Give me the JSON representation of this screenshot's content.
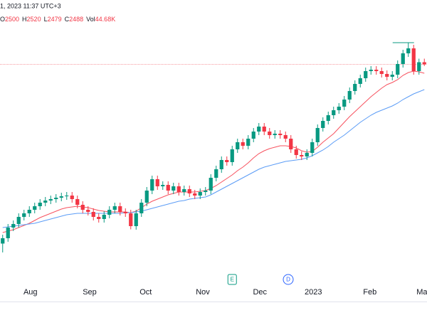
{
  "chart_data": {
    "type": "candlestick",
    "header": {
      "datetime": "1, 2023 11:37 UTC+3",
      "open_label": "O",
      "high_label": "H",
      "low_label": "L",
      "close_label": "C",
      "volume_label": "Vol",
      "open": 2500,
      "high": 2520,
      "low": 2479,
      "close": 2488,
      "volume": {
        "value": 44680,
        "label": "44.68K"
      }
    },
    "up_color": "#089981",
    "down_color": "#f23645",
    "open": [
      1480,
      1510,
      1570,
      1590,
      1630,
      1650,
      1670,
      1690,
      1710,
      1722,
      1730,
      1738,
      1746,
      1750,
      1730,
      1698,
      1670,
      1658,
      1630,
      1618,
      1642,
      1670,
      1690,
      1658,
      1650,
      1578,
      1650,
      1710,
      1778,
      1842,
      1802,
      1810,
      1778,
      1802,
      1770,
      1786,
      1762,
      1750,
      1770,
      1778,
      1850,
      1898,
      1950,
      1938,
      2010,
      2050,
      2030,
      2070,
      2110,
      2138,
      2110,
      2090,
      2098,
      2090,
      2070,
      2010,
      1978,
      1970,
      1990,
      2050,
      2130,
      2170,
      2202,
      2230,
      2250,
      2290,
      2338,
      2378,
      2410,
      2450,
      2458,
      2450,
      2434,
      2418,
      2430,
      2490,
      2550,
      2578,
      2450,
      2500
    ],
    "high": [
      1530,
      1590,
      1610,
      1650,
      1670,
      1690,
      1710,
      1730,
      1742,
      1750,
      1758,
      1766,
      1770,
      1770,
      1750,
      1718,
      1690,
      1678,
      1650,
      1662,
      1690,
      1710,
      1710,
      1678,
      1670,
      1670,
      1730,
      1798,
      1862,
      1862,
      1830,
      1830,
      1822,
      1822,
      1806,
      1806,
      1782,
      1790,
      1798,
      1870,
      1918,
      1970,
      1970,
      2030,
      2070,
      2070,
      2090,
      2130,
      2158,
      2158,
      2130,
      2118,
      2118,
      2110,
      2090,
      2030,
      1998,
      2010,
      2070,
      2150,
      2190,
      2222,
      2250,
      2270,
      2310,
      2358,
      2398,
      2430,
      2470,
      2478,
      2478,
      2470,
      2454,
      2450,
      2510,
      2570,
      2610,
      2598,
      2520,
      2520
    ],
    "low": [
      1430,
      1490,
      1550,
      1570,
      1610,
      1630,
      1650,
      1670,
      1690,
      1702,
      1710,
      1718,
      1726,
      1710,
      1678,
      1650,
      1638,
      1610,
      1598,
      1598,
      1622,
      1650,
      1638,
      1630,
      1560,
      1558,
      1630,
      1690,
      1758,
      1782,
      1782,
      1758,
      1758,
      1750,
      1750,
      1742,
      1730,
      1730,
      1750,
      1758,
      1830,
      1878,
      1918,
      1918,
      1990,
      2010,
      2010,
      2050,
      2090,
      2090,
      2070,
      2070,
      2070,
      2050,
      1990,
      1958,
      1950,
      1950,
      1970,
      2030,
      2110,
      2150,
      2182,
      2210,
      2230,
      2270,
      2318,
      2358,
      2390,
      2430,
      2430,
      2414,
      2398,
      2398,
      2410,
      2470,
      2530,
      2430,
      2430,
      2479
    ],
    "close": [
      1510,
      1570,
      1590,
      1630,
      1650,
      1670,
      1690,
      1710,
      1722,
      1730,
      1738,
      1746,
      1750,
      1730,
      1698,
      1670,
      1658,
      1630,
      1618,
      1642,
      1670,
      1690,
      1658,
      1650,
      1578,
      1650,
      1710,
      1778,
      1842,
      1802,
      1810,
      1778,
      1802,
      1770,
      1786,
      1762,
      1750,
      1770,
      1778,
      1850,
      1898,
      1950,
      1938,
      2010,
      2050,
      2030,
      2070,
      2110,
      2138,
      2110,
      2090,
      2098,
      2090,
      2070,
      2010,
      1978,
      1970,
      1990,
      2050,
      2130,
      2170,
      2202,
      2230,
      2250,
      2290,
      2338,
      2378,
      2410,
      2450,
      2458,
      2450,
      2434,
      2418,
      2430,
      2490,
      2550,
      2578,
      2450,
      2500,
      2488
    ],
    "series": [
      {
        "color": "#f7525f",
        "values": [
          1542,
          1550,
          1558,
          1570,
          1582,
          1594,
          1610,
          1626,
          1638,
          1650,
          1662,
          1674,
          1682,
          1686,
          1690,
          1686,
          1682,
          1674,
          1666,
          1662,
          1658,
          1658,
          1658,
          1658,
          1654,
          1662,
          1682,
          1702,
          1718,
          1730,
          1742,
          1754,
          1762,
          1770,
          1770,
          1770,
          1770,
          1774,
          1778,
          1790,
          1806,
          1826,
          1846,
          1866,
          1890,
          1910,
          1934,
          1962,
          1986,
          2002,
          2014,
          2022,
          2030,
          2030,
          2026,
          2018,
          2002,
          1994,
          1998,
          2022,
          2050,
          2074,
          2098,
          2130,
          2162,
          2194,
          2222,
          2250,
          2278,
          2306,
          2330,
          2354,
          2374,
          2386,
          2402,
          2426,
          2442,
          2450,
          2446,
          2438
        ]
      },
      {
        "color": "#5b9cf6",
        "values": [
          1570,
          1574,
          1578,
          1582,
          1586,
          1590,
          1594,
          1602,
          1610,
          1618,
          1626,
          1634,
          1642,
          1646,
          1650,
          1650,
          1650,
          1650,
          1650,
          1650,
          1650,
          1650,
          1650,
          1654,
          1654,
          1658,
          1662,
          1670,
          1678,
          1686,
          1694,
          1702,
          1710,
          1718,
          1722,
          1730,
          1734,
          1738,
          1742,
          1754,
          1770,
          1786,
          1802,
          1818,
          1834,
          1850,
          1866,
          1882,
          1898,
          1910,
          1918,
          1926,
          1934,
          1942,
          1946,
          1950,
          1954,
          1962,
          1974,
          1990,
          2006,
          2026,
          2050,
          2070,
          2090,
          2114,
          2138,
          2162,
          2182,
          2202,
          2218,
          2230,
          2242,
          2254,
          2270,
          2290,
          2306,
          2322,
          2334,
          2346
        ]
      }
    ],
    "xlim": [
      0,
      80
    ],
    "xticks": [
      {
        "value": 5.7,
        "label": "Aug"
      },
      {
        "value": 16.8,
        "label": "Sep"
      },
      {
        "value": 27.3,
        "label": "Oct"
      },
      {
        "value": 38,
        "label": "Nov"
      },
      {
        "value": 48.7,
        "label": "Dec"
      },
      {
        "value": 58.7,
        "label": "2023"
      },
      {
        "value": 69.3,
        "label": "Feb"
      },
      {
        "value": 79.3,
        "label": "Mar"
      }
    ],
    "ylim": [
      1250,
      2850
    ],
    "events": [
      {
        "label": "E",
        "at": 43.5
      },
      {
        "label": "D",
        "at": 54
      }
    ]
  }
}
